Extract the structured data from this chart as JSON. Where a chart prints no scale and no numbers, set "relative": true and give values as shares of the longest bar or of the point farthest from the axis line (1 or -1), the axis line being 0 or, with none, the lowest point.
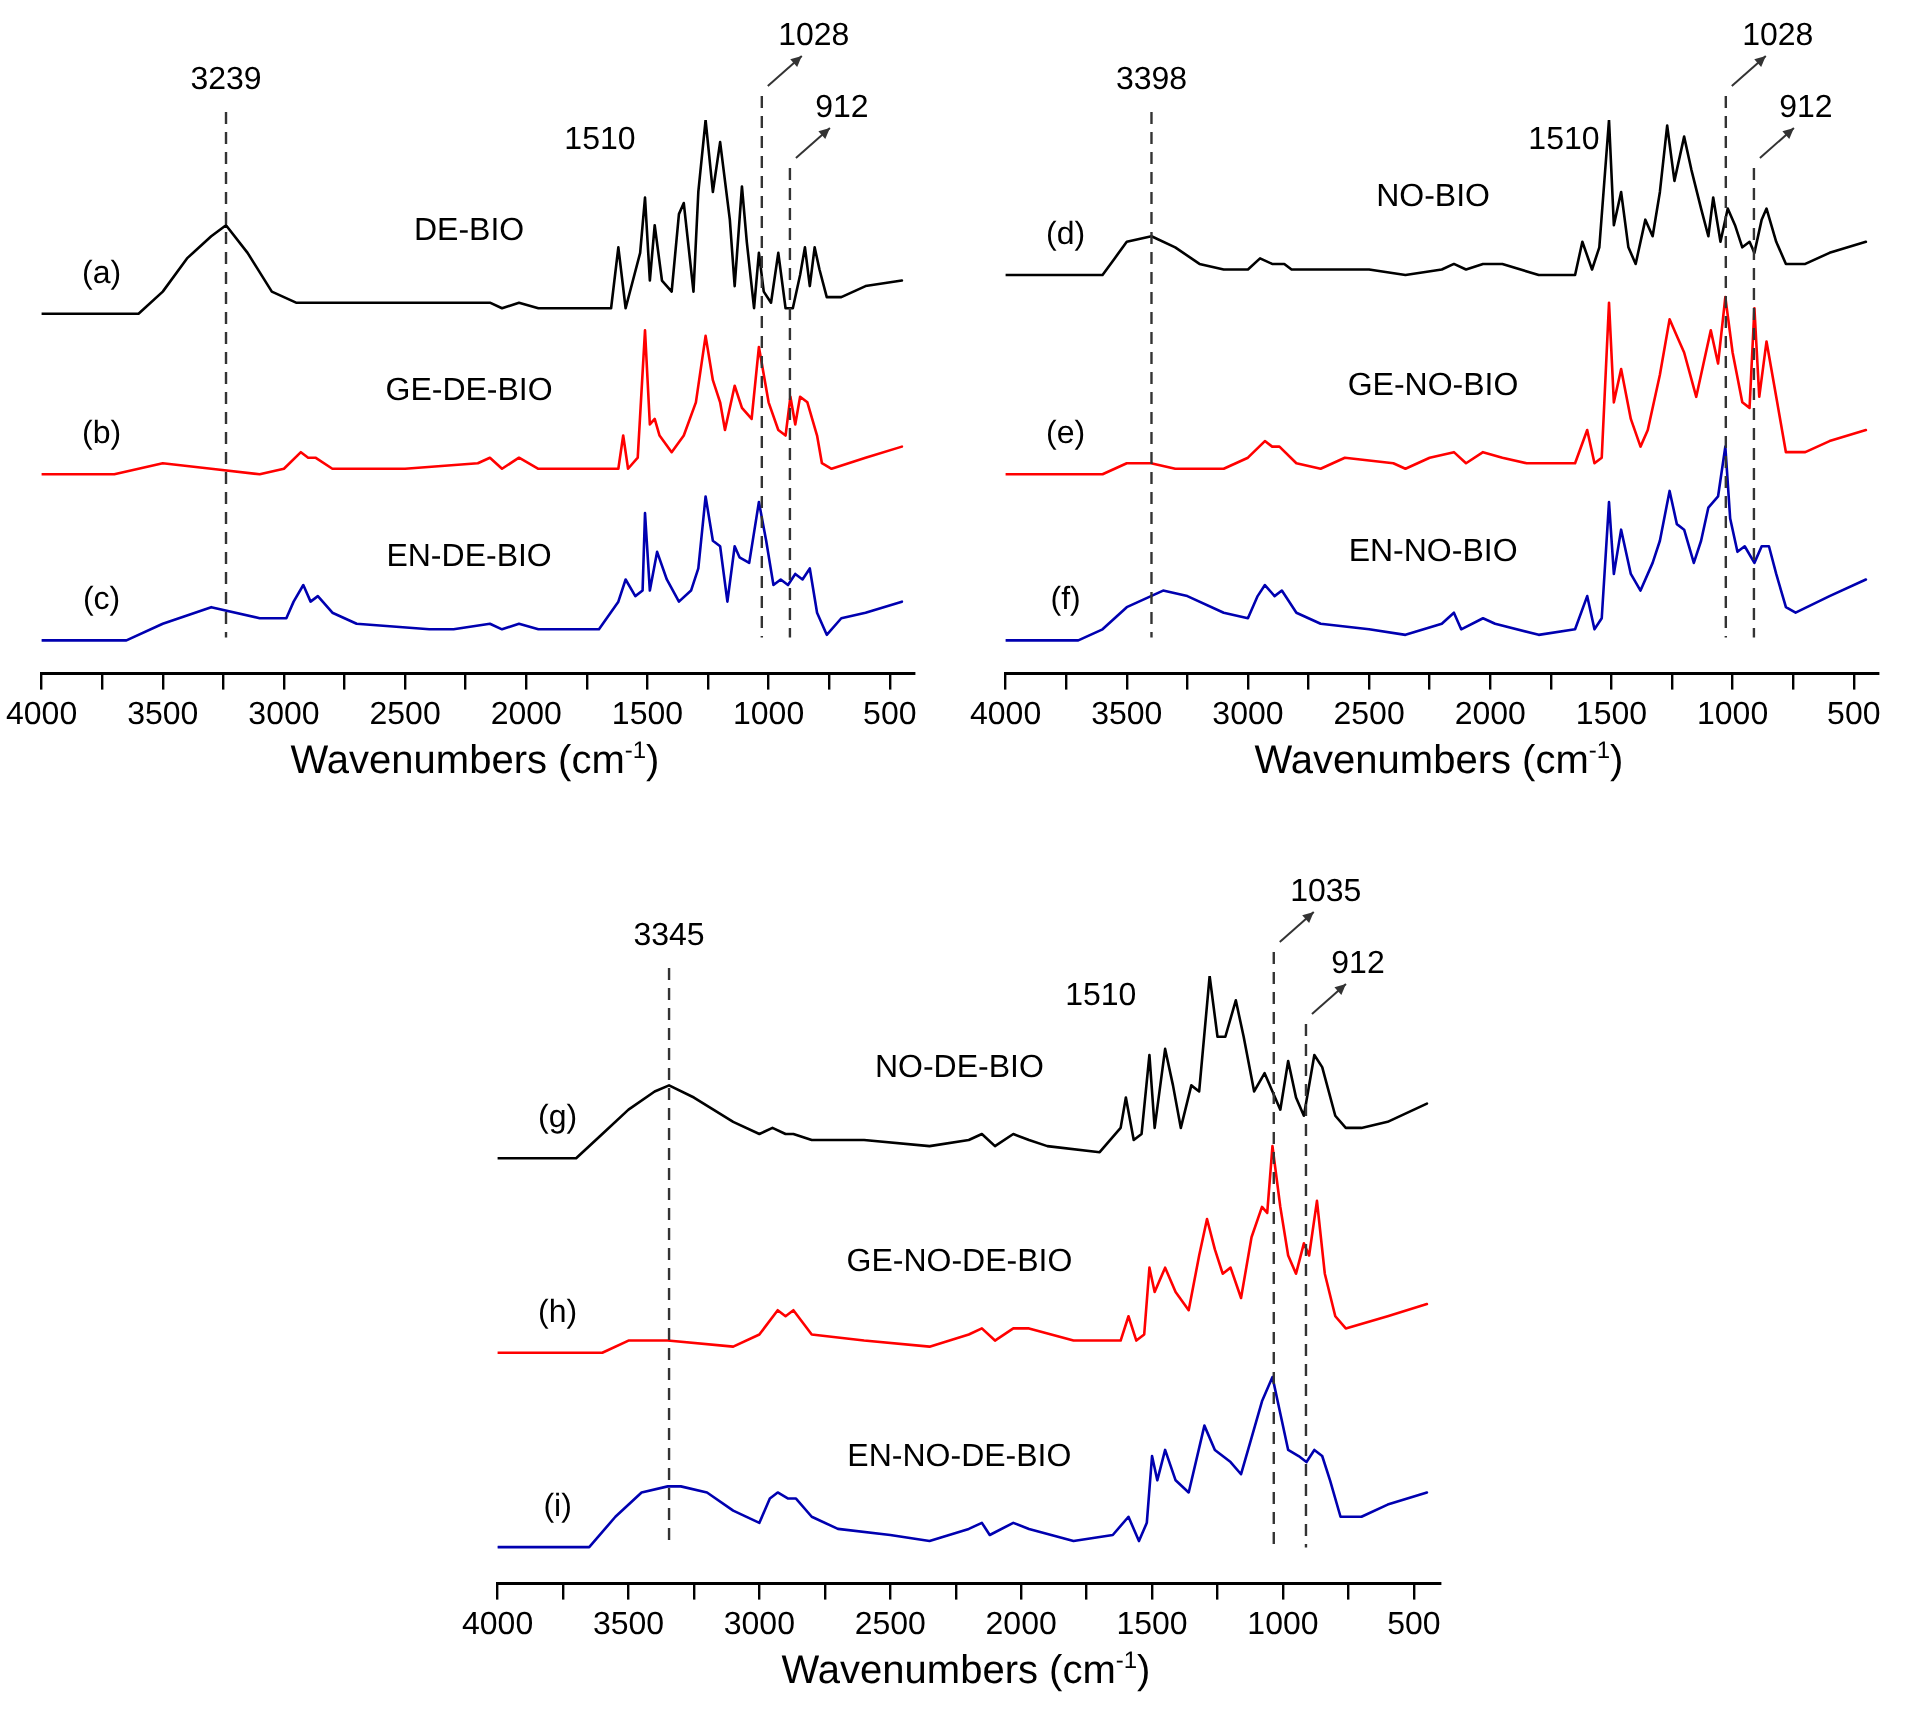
{
  "chart_data": [
    {
      "type": "line",
      "relative": true,
      "xlabel": "Wavenumbers (cm$^{-1}$)",
      "tick_labels": "x",
      "xlim": [
        4000,
        400
      ],
      "xticks": [
        4000,
        {
          "value": 3750,
          "label": null
        },
        3500,
        {
          "value": 3250,
          "label": null
        },
        3000,
        {
          "value": 2750,
          "label": null
        },
        2500,
        {
          "value": 2250,
          "label": null
        },
        2000,
        {
          "value": 1750,
          "label": null
        },
        1500,
        {
          "value": 1250,
          "label": null
        },
        1000,
        {
          "value": 750,
          "label": null
        },
        500
      ],
      "series": [
        {
          "name": "DE-BIO",
          "color": "#000000",
          "x": [
            4000,
            3600,
            3500,
            3400,
            3300,
            3239,
            3150,
            3050,
            2950,
            2900,
            2800,
            2500,
            2200,
            2150,
            2100,
            2030,
            1950,
            1750,
            1650,
            1620,
            1590,
            1530,
            1510,
            1490,
            1470,
            1440,
            1400,
            1370,
            1350,
            1310,
            1290,
            1260,
            1230,
            1200,
            1160,
            1140,
            1110,
            1090,
            1060,
            1040,
            1020,
            990,
            960,
            930,
            900,
            870,
            850,
            830,
            810,
            790,
            760,
            700,
            600,
            450
          ],
          "values": [
            0.65,
            0.65,
            0.69,
            0.75,
            0.79,
            0.81,
            0.76,
            0.69,
            0.67,
            0.67,
            0.67,
            0.67,
            0.67,
            0.67,
            0.66,
            0.67,
            0.66,
            0.66,
            0.66,
            0.77,
            0.66,
            0.76,
            0.86,
            0.71,
            0.81,
            0.71,
            0.69,
            0.83,
            0.85,
            0.69,
            0.87,
            1.0,
            0.87,
            0.96,
            0.82,
            0.7,
            0.88,
            0.78,
            0.66,
            0.76,
            0.69,
            0.67,
            0.76,
            0.66,
            0.66,
            0.72,
            0.77,
            0.7,
            0.77,
            0.73,
            0.68,
            0.68,
            0.7,
            0.71
          ]
        },
        {
          "name": "GE-DE-BIO",
          "color": "#ff0000",
          "x": [
            4000,
            3700,
            3500,
            3300,
            3100,
            3000,
            2930,
            2900,
            2870,
            2800,
            2500,
            2200,
            2150,
            2100,
            2030,
            1950,
            1700,
            1620,
            1600,
            1580,
            1540,
            1510,
            1490,
            1470,
            1450,
            1400,
            1350,
            1300,
            1260,
            1230,
            1200,
            1180,
            1140,
            1110,
            1070,
            1040,
            1000,
            960,
            930,
            910,
            890,
            870,
            840,
            800,
            780,
            740,
            600,
            450
          ],
          "values": [
            0.36,
            0.36,
            0.38,
            0.37,
            0.36,
            0.37,
            0.4,
            0.39,
            0.39,
            0.37,
            0.37,
            0.38,
            0.39,
            0.37,
            0.39,
            0.37,
            0.37,
            0.37,
            0.43,
            0.37,
            0.39,
            0.62,
            0.45,
            0.46,
            0.43,
            0.4,
            0.43,
            0.49,
            0.61,
            0.53,
            0.49,
            0.44,
            0.52,
            0.48,
            0.46,
            0.59,
            0.49,
            0.44,
            0.43,
            0.5,
            0.45,
            0.5,
            0.49,
            0.43,
            0.38,
            0.37,
            0.39,
            0.41
          ]
        },
        {
          "name": "EN-DE-BIO",
          "color": "#0000b0",
          "x": [
            4000,
            3650,
            3500,
            3300,
            3100,
            2990,
            2960,
            2920,
            2890,
            2860,
            2800,
            2700,
            2400,
            2300,
            2150,
            2100,
            2030,
            1950,
            1800,
            1700,
            1620,
            1590,
            1550,
            1520,
            1510,
            1490,
            1460,
            1420,
            1370,
            1320,
            1290,
            1260,
            1230,
            1200,
            1170,
            1140,
            1120,
            1080,
            1040,
            1010,
            980,
            950,
            920,
            890,
            860,
            830,
            800,
            760,
            700,
            600,
            450
          ],
          "values": [
            0.06,
            0.06,
            0.09,
            0.12,
            0.1,
            0.1,
            0.13,
            0.16,
            0.13,
            0.14,
            0.11,
            0.09,
            0.08,
            0.08,
            0.09,
            0.08,
            0.09,
            0.08,
            0.08,
            0.08,
            0.13,
            0.17,
            0.14,
            0.15,
            0.29,
            0.15,
            0.22,
            0.17,
            0.13,
            0.15,
            0.19,
            0.32,
            0.24,
            0.23,
            0.13,
            0.23,
            0.21,
            0.2,
            0.31,
            0.24,
            0.16,
            0.17,
            0.16,
            0.18,
            0.17,
            0.19,
            0.11,
            0.07,
            0.1,
            0.11,
            0.13
          ]
        }
      ],
      "ref_lines": [
        {
          "axis": "x",
          "value": 3239,
          "label": "3239",
          "color": "#333333",
          "line_style": "dashed"
        },
        {
          "axis": "x",
          "value": 1028,
          "label": "1028",
          "color": "#333333",
          "line_style": "dashed"
        },
        {
          "axis": "x",
          "value": 912,
          "label": "912",
          "color": "#333333",
          "line_style": "dashed"
        }
      ],
      "annotations": [
        "1510",
        "(a)",
        "(b)",
        "(c)"
      ]
    },
    {
      "type": "line",
      "relative": true,
      "xlabel": "Wavenumbers (cm$^{-1}$)",
      "tick_labels": "x",
      "xlim": [
        4000,
        400
      ],
      "xticks": [
        4000,
        {
          "value": 3750,
          "label": null
        },
        3500,
        {
          "value": 3250,
          "label": null
        },
        3000,
        {
          "value": 2750,
          "label": null
        },
        2500,
        {
          "value": 2250,
          "label": null
        },
        2000,
        {
          "value": 1750,
          "label": null
        },
        1500,
        {
          "value": 1250,
          "label": null
        },
        1000,
        {
          "value": 750,
          "label": null
        },
        500
      ],
      "series": [
        {
          "name": "NO-BIO",
          "color": "#000000",
          "x": [
            4000,
            3600,
            3550,
            3500,
            3398,
            3300,
            3200,
            3100,
            3000,
            2950,
            2900,
            2850,
            2820,
            2500,
            2350,
            2200,
            2150,
            2100,
            2030,
            1950,
            1800,
            1650,
            1620,
            1580,
            1550,
            1510,
            1490,
            1460,
            1430,
            1400,
            1360,
            1330,
            1300,
            1270,
            1240,
            1200,
            1170,
            1130,
            1100,
            1080,
            1050,
            1020,
            990,
            960,
            930,
            910,
            880,
            860,
            820,
            780,
            700,
            600,
            450
          ],
          "values": [
            0.72,
            0.72,
            0.75,
            0.78,
            0.79,
            0.77,
            0.74,
            0.73,
            0.73,
            0.75,
            0.74,
            0.74,
            0.73,
            0.73,
            0.72,
            0.73,
            0.74,
            0.73,
            0.74,
            0.74,
            0.72,
            0.72,
            0.78,
            0.73,
            0.77,
            1.0,
            0.81,
            0.87,
            0.77,
            0.74,
            0.82,
            0.79,
            0.87,
            0.99,
            0.89,
            0.97,
            0.91,
            0.84,
            0.79,
            0.86,
            0.78,
            0.84,
            0.81,
            0.77,
            0.78,
            0.76,
            0.82,
            0.84,
            0.78,
            0.74,
            0.74,
            0.76,
            0.78
          ]
        },
        {
          "name": "GE-NO-BIO",
          "color": "#ff0000",
          "x": [
            4000,
            3600,
            3500,
            3400,
            3300,
            3100,
            3000,
            2930,
            2900,
            2870,
            2800,
            2700,
            2600,
            2400,
            2350,
            2250,
            2150,
            2100,
            2030,
            1950,
            1850,
            1650,
            1600,
            1570,
            1540,
            1510,
            1490,
            1460,
            1420,
            1380,
            1350,
            1300,
            1260,
            1230,
            1200,
            1150,
            1120,
            1090,
            1060,
            1030,
            1000,
            960,
            930,
            910,
            890,
            860,
            820,
            780,
            700,
            600,
            450
          ],
          "values": [
            0.36,
            0.36,
            0.38,
            0.38,
            0.37,
            0.37,
            0.39,
            0.42,
            0.41,
            0.41,
            0.38,
            0.37,
            0.39,
            0.38,
            0.37,
            0.39,
            0.4,
            0.38,
            0.4,
            0.39,
            0.38,
            0.38,
            0.44,
            0.38,
            0.39,
            0.67,
            0.49,
            0.55,
            0.46,
            0.41,
            0.44,
            0.54,
            0.64,
            0.61,
            0.58,
            0.5,
            0.56,
            0.62,
            0.56,
            0.68,
            0.58,
            0.49,
            0.48,
            0.66,
            0.5,
            0.6,
            0.5,
            0.4,
            0.4,
            0.42,
            0.44
          ]
        },
        {
          "name": "EN-NO-BIO",
          "color": "#0000b0",
          "x": [
            4000,
            3700,
            3600,
            3500,
            3400,
            3350,
            3250,
            3100,
            3000,
            2960,
            2930,
            2890,
            2860,
            2800,
            2700,
            2500,
            2350,
            2200,
            2150,
            2120,
            2030,
            1980,
            1800,
            1650,
            1600,
            1570,
            1540,
            1510,
            1490,
            1460,
            1420,
            1380,
            1330,
            1300,
            1260,
            1230,
            1200,
            1160,
            1130,
            1100,
            1060,
            1030,
            1010,
            980,
            950,
            910,
            880,
            850,
            820,
            780,
            740,
            600,
            450
          ],
          "values": [
            0.06,
            0.06,
            0.08,
            0.12,
            0.14,
            0.15,
            0.14,
            0.11,
            0.1,
            0.14,
            0.16,
            0.14,
            0.15,
            0.11,
            0.09,
            0.08,
            0.07,
            0.09,
            0.11,
            0.08,
            0.1,
            0.09,
            0.07,
            0.08,
            0.14,
            0.08,
            0.1,
            0.31,
            0.18,
            0.26,
            0.18,
            0.15,
            0.2,
            0.24,
            0.33,
            0.27,
            0.26,
            0.2,
            0.24,
            0.3,
            0.32,
            0.41,
            0.28,
            0.22,
            0.23,
            0.2,
            0.23,
            0.23,
            0.18,
            0.12,
            0.11,
            0.14,
            0.17
          ]
        }
      ],
      "ref_lines": [
        {
          "axis": "x",
          "value": 3398,
          "label": "3398",
          "color": "#333333",
          "line_style": "dashed"
        },
        {
          "axis": "x",
          "value": 1028,
          "label": "1028",
          "color": "#333333",
          "line_style": "dashed"
        },
        {
          "axis": "x",
          "value": 912,
          "label": "912",
          "color": "#333333",
          "line_style": "dashed"
        }
      ],
      "annotations": [
        "1510",
        "(d)",
        "(e)",
        "(f)"
      ]
    },
    {
      "type": "line",
      "relative": true,
      "xlabel": "Wavenumbers (cm$^{-1}$)",
      "tick_labels": "x",
      "xlim": [
        4000,
        400
      ],
      "xticks": [
        4000,
        {
          "value": 3750,
          "label": null
        },
        3500,
        {
          "value": 3250,
          "label": null
        },
        3000,
        {
          "value": 2750,
          "label": null
        },
        2500,
        {
          "value": 2250,
          "label": null
        },
        2000,
        {
          "value": 1750,
          "label": null
        },
        1500,
        {
          "value": 1250,
          "label": null
        },
        1000,
        {
          "value": 750,
          "label": null
        },
        500
      ],
      "series": [
        {
          "name": "NO-DE-BIO",
          "color": "#000000",
          "x": [
            4000,
            3700,
            3600,
            3500,
            3400,
            3345,
            3250,
            3100,
            3000,
            2950,
            2900,
            2870,
            2800,
            2600,
            2350,
            2200,
            2150,
            2100,
            2030,
            1970,
            1900,
            1700,
            1620,
            1600,
            1570,
            1540,
            1510,
            1490,
            1450,
            1420,
            1390,
            1350,
            1320,
            1280,
            1250,
            1220,
            1180,
            1150,
            1110,
            1070,
            1040,
            1010,
            980,
            950,
            920,
            880,
            850,
            800,
            760,
            700,
            600,
            450
          ],
          "values": [
            0.7,
            0.7,
            0.74,
            0.78,
            0.81,
            0.82,
            0.8,
            0.76,
            0.74,
            0.75,
            0.74,
            0.74,
            0.73,
            0.73,
            0.72,
            0.73,
            0.74,
            0.72,
            0.74,
            0.73,
            0.72,
            0.71,
            0.75,
            0.8,
            0.73,
            0.74,
            0.87,
            0.75,
            0.88,
            0.82,
            0.75,
            0.82,
            0.81,
            1.0,
            0.9,
            0.9,
            0.96,
            0.9,
            0.81,
            0.84,
            0.81,
            0.78,
            0.86,
            0.8,
            0.77,
            0.87,
            0.85,
            0.77,
            0.75,
            0.75,
            0.76,
            0.79
          ]
        },
        {
          "name": "GE-NO-DE-BIO",
          "color": "#ff0000",
          "x": [
            4000,
            3600,
            3500,
            3350,
            3100,
            3000,
            2930,
            2900,
            2870,
            2800,
            2600,
            2350,
            2200,
            2150,
            2100,
            2030,
            1970,
            1800,
            1620,
            1590,
            1560,
            1530,
            1510,
            1490,
            1450,
            1410,
            1360,
            1320,
            1290,
            1260,
            1230,
            1200,
            1160,
            1120,
            1080,
            1060,
            1040,
            1010,
            980,
            950,
            920,
            900,
            870,
            840,
            800,
            760,
            600,
            450
          ],
          "values": [
            0.38,
            0.38,
            0.4,
            0.4,
            0.39,
            0.41,
            0.45,
            0.44,
            0.45,
            0.41,
            0.4,
            0.39,
            0.41,
            0.42,
            0.4,
            0.42,
            0.42,
            0.4,
            0.4,
            0.44,
            0.4,
            0.41,
            0.52,
            0.48,
            0.52,
            0.48,
            0.45,
            0.54,
            0.6,
            0.55,
            0.51,
            0.52,
            0.47,
            0.57,
            0.62,
            0.61,
            0.72,
            0.62,
            0.54,
            0.51,
            0.56,
            0.54,
            0.63,
            0.51,
            0.44,
            0.42,
            0.44,
            0.46
          ]
        },
        {
          "name": "EN-NO-DE-BIO",
          "color": "#0000b0",
          "x": [
            4000,
            3650,
            3550,
            3450,
            3350,
            3300,
            3200,
            3100,
            3000,
            2960,
            2930,
            2890,
            2860,
            2800,
            2700,
            2500,
            2350,
            2200,
            2150,
            2120,
            2030,
            1970,
            1800,
            1650,
            1590,
            1550,
            1520,
            1500,
            1480,
            1450,
            1410,
            1360,
            1300,
            1260,
            1200,
            1160,
            1120,
            1080,
            1040,
            1010,
            980,
            940,
            910,
            880,
            850,
            820,
            780,
            700,
            600,
            450
          ],
          "values": [
            0.06,
            0.06,
            0.11,
            0.15,
            0.16,
            0.16,
            0.15,
            0.12,
            0.1,
            0.14,
            0.15,
            0.14,
            0.14,
            0.11,
            0.09,
            0.08,
            0.07,
            0.09,
            0.1,
            0.08,
            0.1,
            0.09,
            0.07,
            0.08,
            0.11,
            0.07,
            0.1,
            0.21,
            0.17,
            0.22,
            0.17,
            0.15,
            0.26,
            0.22,
            0.2,
            0.18,
            0.24,
            0.3,
            0.34,
            0.28,
            0.22,
            0.21,
            0.2,
            0.22,
            0.21,
            0.17,
            0.11,
            0.11,
            0.13,
            0.15
          ]
        }
      ],
      "ref_lines": [
        {
          "axis": "x",
          "value": 3345,
          "label": "3345",
          "color": "#333333",
          "line_style": "dashed"
        },
        {
          "axis": "x",
          "value": 1035,
          "label": "1035",
          "color": "#333333",
          "line_style": "dashed"
        },
        {
          "axis": "x",
          "value": 912,
          "label": "912",
          "color": "#333333",
          "line_style": "dashed"
        }
      ],
      "annotations": [
        "1510",
        "(g)",
        "(h)",
        "(i)"
      ]
    }
  ]
}
